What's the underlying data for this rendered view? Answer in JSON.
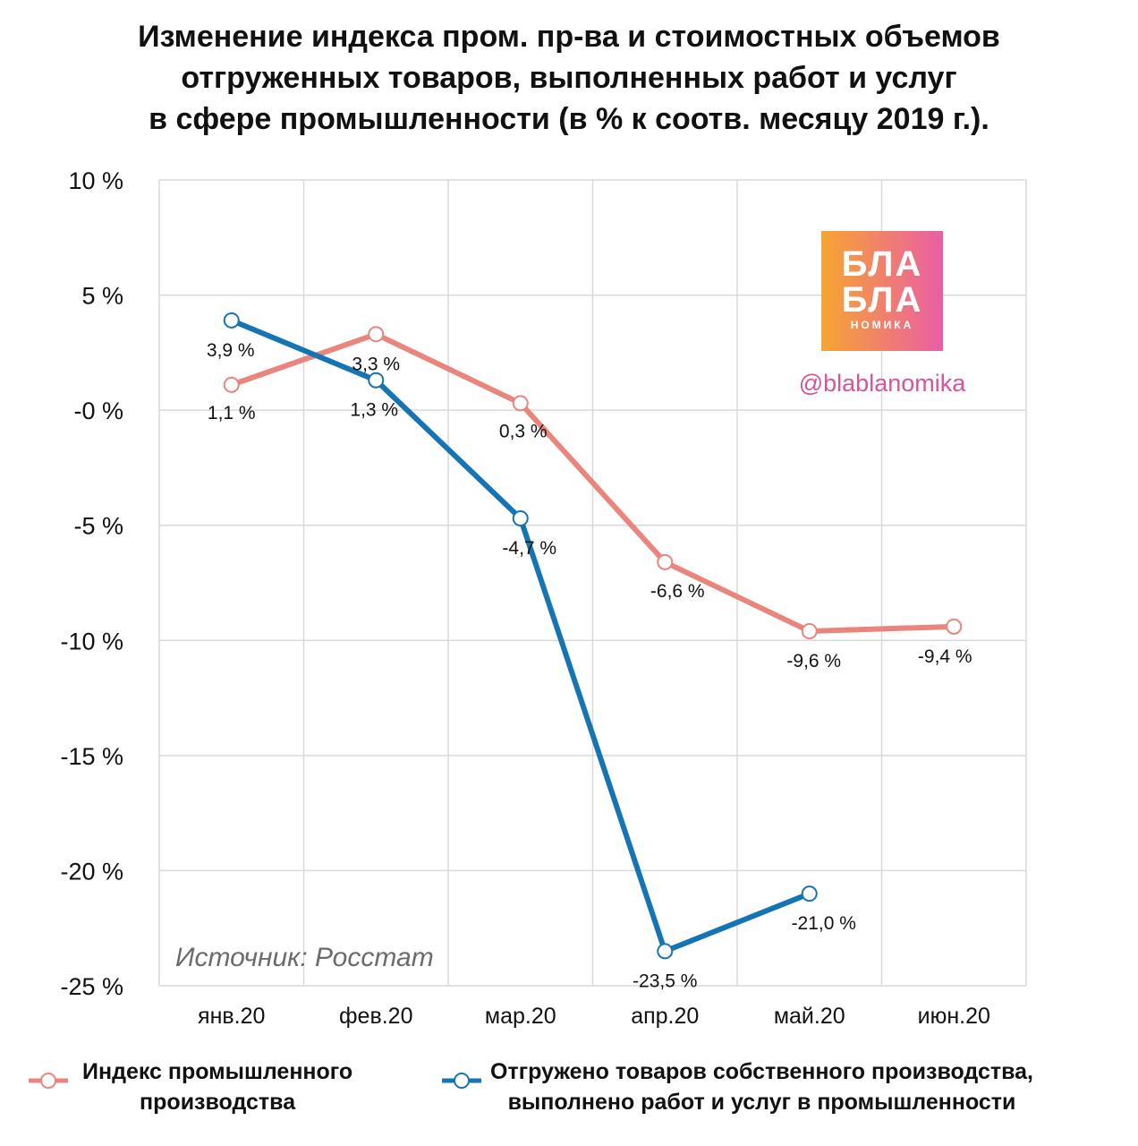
{
  "title_lines": [
    "Изменение индекса пром. пр-ва и стоимостных объемов",
    "отгруженных товаров, выполненных работ и услуг",
    "в сфере промышленности (в % к соотв. месяцу 2019 г.)."
  ],
  "source": "Источник: Росстат",
  "logo": {
    "line1": "БЛА",
    "line2": "БЛА",
    "line3": "НОМИКА"
  },
  "handle": "@blablanomika",
  "colors": {
    "industrial_index": "#e9857d",
    "shipped_goods": "#1474b4",
    "grid": "#d9d9d9",
    "logo_gradient": [
      "#f7a531",
      "#e95ea5"
    ]
  },
  "chart_data": {
    "type": "line",
    "categories": [
      "янв.20",
      "фев.20",
      "мар.20",
      "апр.20",
      "май.20",
      "июн.20"
    ],
    "ylim": [
      -25,
      10
    ],
    "yticks": [
      10,
      5,
      0,
      -5,
      -10,
      -15,
      -20,
      -25
    ],
    "ytick_labels": [
      "10 %",
      "5 %",
      "-0 %",
      "-5 %",
      "-10 %",
      "-15 %",
      "-20 %",
      "-25 %"
    ],
    "grid": true,
    "legend_position": "bottom",
    "series": [
      {
        "name": "Индекс промышленного производства",
        "legend_lines": [
          "Индекс промышленного",
          "производства"
        ],
        "values": [
          1.1,
          3.3,
          0.3,
          -6.6,
          -9.6,
          -9.4
        ],
        "labels": [
          "1,1 %",
          "3,3 %",
          "0,3 %",
          "-6,6 %",
          "-9,6 %",
          "-9,4 %"
        ]
      },
      {
        "name": "Отгружено товаров собственного производства, выполнено работ и услуг в промышленности",
        "legend_lines": [
          "Отгружено товаров собственного производства,",
          "выполнено работ и услуг в промышленности"
        ],
        "values": [
          3.9,
          1.3,
          -4.7,
          -23.5,
          -21.0,
          null
        ],
        "labels": [
          "3,9 %",
          "1,3 %",
          "-4,7 %",
          "-23,5 %",
          "-21,0 %",
          null
        ]
      }
    ]
  }
}
